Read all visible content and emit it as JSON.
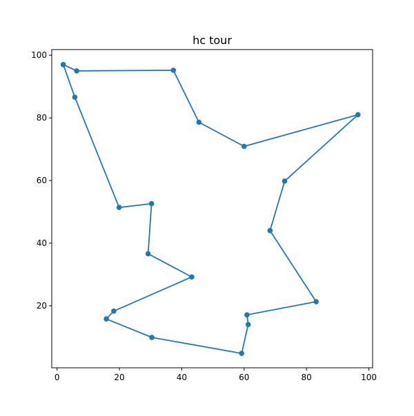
{
  "chart_data": {
    "type": "line",
    "title": "hc tour",
    "xlabel": "",
    "ylabel": "",
    "xlim": [
      -1.7,
      101.2
    ],
    "ylim": [
      0.2,
      101.8
    ],
    "xticks": [
      0,
      20,
      40,
      60,
      80,
      100
    ],
    "yticks": [
      20,
      40,
      60,
      80,
      100
    ],
    "grid": false,
    "color": "#1f77b4",
    "series": [
      {
        "x": [
          2.0,
          6.3,
          37.3,
          45.5,
          60.0,
          96.5,
          73.0,
          68.3,
          83.1,
          60.9,
          61.3,
          59.2,
          30.4,
          15.8,
          18.2,
          43.2,
          29.2,
          30.3,
          19.9,
          5.7,
          2.0
        ],
        "y": [
          97.0,
          95.0,
          95.2,
          78.6,
          70.9,
          81.0,
          59.8,
          44.0,
          21.3,
          17.1,
          14.0,
          4.8,
          9.9,
          15.8,
          18.3,
          29.2,
          36.6,
          52.6,
          51.4,
          86.6,
          97.0
        ]
      }
    ]
  }
}
